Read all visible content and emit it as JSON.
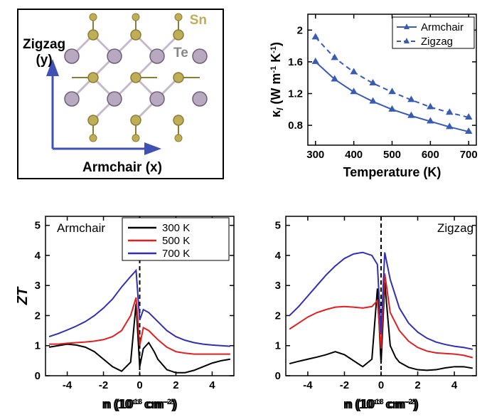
{
  "figure": {
    "background": "#ffffff",
    "font_family": "Arial",
    "panel_a": {
      "type": "crystal_structure_diagram",
      "border_color": "#000000",
      "border_width": 2,
      "axes": {
        "x_label": "Armchair (x)",
        "y_label": "Zigzag\n(y)",
        "arrow_color": "#3f51b5",
        "label_fontsize": 19,
        "label_color": "#000000"
      },
      "atoms": {
        "sn": {
          "label": "Sn",
          "color": "#bfae55",
          "stroke": "#8a7d3a",
          "label_color": "#bfae55"
        },
        "te": {
          "label": "Te",
          "color": "#b8a8c0",
          "stroke": "#6e5f7a",
          "label_color": "#888888"
        }
      }
    },
    "panel_b": {
      "type": "line",
      "xlabel": "Temperature (K)",
      "ylabel": "κ_l (W m⁻¹ K⁻¹)",
      "label_fontsize": 18,
      "tick_fontsize": 15,
      "xlim": [
        280,
        720
      ],
      "ylim": [
        0.55,
        2.2
      ],
      "xticks": [
        300,
        400,
        500,
        600,
        700
      ],
      "yticks": [
        0.8,
        1.2,
        1.6,
        2.0
      ],
      "yticklabels": [
        "0.8",
        "1.2",
        "1.6",
        "2"
      ],
      "axis_color": "#000000",
      "legend": {
        "entries": [
          "Armchair",
          "Zigzag"
        ],
        "position": "top-right"
      },
      "series": [
        {
          "name": "Armchair",
          "color": "#3a5bb2",
          "linestyle": "solid",
          "linewidth": 2,
          "marker": "triangle",
          "marker_size": 6,
          "x": [
            300,
            350,
            400,
            450,
            500,
            550,
            600,
            650,
            700
          ],
          "y": [
            1.6,
            1.38,
            1.22,
            1.1,
            1.0,
            0.92,
            0.85,
            0.78,
            0.72
          ]
        },
        {
          "name": "Zigzag",
          "color": "#3a5bb2",
          "linestyle": "dashed",
          "linewidth": 2,
          "marker": "triangle",
          "marker_size": 6,
          "x": [
            300,
            350,
            400,
            450,
            500,
            550,
            600,
            650,
            700
          ],
          "y": [
            1.91,
            1.65,
            1.47,
            1.33,
            1.22,
            1.12,
            1.03,
            0.96,
            0.9
          ]
        }
      ]
    },
    "panel_c": {
      "type": "line",
      "label": "Armchair",
      "xlabel": "n (10¹³ cm⁻²)",
      "ylabel": "ZT",
      "label_fontsize": 18,
      "tick_fontsize": 15,
      "xlim": [
        -5.2,
        5.2
      ],
      "ylim": [
        0,
        5.3
      ],
      "xticks": [
        -4,
        -2,
        0,
        2,
        4
      ],
      "yticks": [
        0,
        1,
        2,
        3,
        4,
        5
      ],
      "vline": {
        "x": 0,
        "style": "dashed",
        "color": "#000000"
      },
      "legend": {
        "entries": [
          "300 K",
          "500 K",
          "700 K"
        ]
      },
      "series_colors": {
        "300": "#000000",
        "500": "#e02020",
        "700": "#3030b0"
      },
      "series": [
        {
          "name": "300 K",
          "color": "#000000",
          "linewidth": 2,
          "x": [
            -5.0,
            -4.5,
            -4.0,
            -3.5,
            -3.0,
            -2.5,
            -2.0,
            -1.5,
            -1.0,
            -0.5,
            -0.2,
            0.0,
            0.2,
            0.5,
            0.8,
            1.0,
            1.5,
            2.0,
            2.5,
            3.0,
            3.5,
            4.0,
            4.5,
            5.0
          ],
          "y": [
            0.95,
            1.0,
            1.05,
            1.02,
            0.95,
            0.8,
            0.55,
            0.3,
            0.15,
            0.45,
            2.4,
            0.3,
            0.9,
            1.1,
            0.8,
            0.55,
            0.2,
            0.1,
            0.1,
            0.18,
            0.3,
            0.42,
            0.5,
            0.55
          ]
        },
        {
          "name": "500 K",
          "color": "#e02020",
          "linewidth": 2,
          "x": [
            -5.0,
            -4.5,
            -4.0,
            -3.5,
            -3.0,
            -2.5,
            -2.0,
            -1.5,
            -1.0,
            -0.5,
            -0.2,
            0.0,
            0.2,
            0.5,
            1.0,
            1.5,
            2.0,
            2.5,
            3.0,
            3.5,
            4.0,
            4.5,
            5.0
          ],
          "y": [
            1.05,
            1.05,
            1.08,
            1.1,
            1.12,
            1.15,
            1.2,
            1.3,
            1.5,
            2.0,
            2.6,
            1.0,
            1.6,
            1.5,
            1.2,
            0.95,
            0.8,
            0.75,
            0.72,
            0.72,
            0.72,
            0.72,
            0.72
          ]
        },
        {
          "name": "700 K",
          "color": "#3030b0",
          "linewidth": 2,
          "x": [
            -5.0,
            -4.5,
            -4.0,
            -3.5,
            -3.0,
            -2.5,
            -2.0,
            -1.5,
            -1.0,
            -0.5,
            -0.2,
            0.0,
            0.2,
            0.5,
            1.0,
            1.5,
            2.0,
            2.5,
            3.0,
            3.5,
            4.0,
            4.5,
            5.0
          ],
          "y": [
            1.3,
            1.4,
            1.52,
            1.65,
            1.8,
            2.0,
            2.25,
            2.55,
            2.95,
            3.3,
            3.5,
            1.85,
            2.2,
            2.1,
            1.8,
            1.5,
            1.3,
            1.18,
            1.1,
            1.05,
            1.02,
            1.0,
            0.98
          ]
        }
      ]
    },
    "panel_d": {
      "type": "line",
      "label": "Zigzag",
      "xlabel": "n (10¹³ cm⁻²)",
      "ylabel": "",
      "label_fontsize": 18,
      "tick_fontsize": 15,
      "xlim": [
        -5.2,
        5.2
      ],
      "ylim": [
        0,
        5.3
      ],
      "xticks": [
        -4,
        -2,
        0,
        2,
        4
      ],
      "yticks": [
        0,
        1,
        2,
        3,
        4,
        5
      ],
      "vline": {
        "x": 0,
        "style": "dashed",
        "color": "#000000"
      },
      "series": [
        {
          "name": "300 K",
          "color": "#000000",
          "linewidth": 2,
          "x": [
            -5.0,
            -4.5,
            -4.0,
            -3.5,
            -3.0,
            -2.5,
            -2.0,
            -1.5,
            -1.0,
            -0.5,
            -0.2,
            0.0,
            0.2,
            0.5,
            0.8,
            1.0,
            1.5,
            2.0,
            2.5,
            3.0,
            3.5,
            4.0,
            4.5,
            5.0
          ],
          "y": [
            0.4,
            0.48,
            0.55,
            0.62,
            0.7,
            0.8,
            0.7,
            0.5,
            0.3,
            0.55,
            2.9,
            0.4,
            3.1,
            1.0,
            0.6,
            0.45,
            0.28,
            0.2,
            0.18,
            0.2,
            0.26,
            0.3,
            0.3,
            0.25
          ]
        },
        {
          "name": "500 K",
          "color": "#e02020",
          "linewidth": 2,
          "x": [
            -5.0,
            -4.5,
            -4.0,
            -3.5,
            -3.0,
            -2.5,
            -2.0,
            -1.5,
            -1.0,
            -0.5,
            -0.2,
            0.0,
            0.2,
            0.5,
            1.0,
            1.5,
            2.0,
            2.5,
            3.0,
            3.5,
            4.0,
            4.5,
            5.0
          ],
          "y": [
            1.55,
            1.75,
            1.95,
            2.1,
            2.2,
            2.28,
            2.3,
            2.28,
            2.25,
            2.3,
            2.5,
            0.9,
            3.4,
            2.1,
            1.5,
            1.15,
            0.94,
            0.82,
            0.76,
            0.74,
            0.72,
            0.68,
            0.6
          ]
        },
        {
          "name": "700 K",
          "color": "#3030b0",
          "linewidth": 2,
          "x": [
            -5.0,
            -4.5,
            -4.0,
            -3.5,
            -3.0,
            -2.5,
            -2.0,
            -1.5,
            -1.0,
            -0.5,
            -0.2,
            0.0,
            0.2,
            0.5,
            1.0,
            1.5,
            2.0,
            2.5,
            3.0,
            3.5,
            4.0,
            4.5,
            5.0
          ],
          "y": [
            2.0,
            2.3,
            2.65,
            3.0,
            3.35,
            3.65,
            3.9,
            4.05,
            4.1,
            4.0,
            3.7,
            1.4,
            4.1,
            3.2,
            2.25,
            1.75,
            1.45,
            1.25,
            1.12,
            1.04,
            0.98,
            0.94,
            0.88
          ]
        }
      ]
    }
  }
}
